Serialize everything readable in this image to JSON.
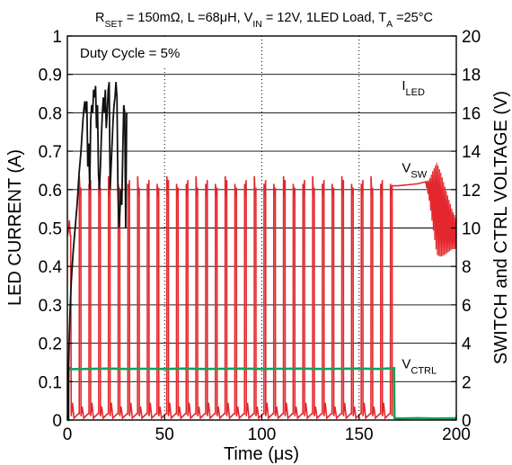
{
  "chart_data": {
    "type": "line",
    "title": {
      "parts": [
        {
          "text": "R",
          "sub": false
        },
        {
          "text": "SET",
          "sub": true
        },
        {
          "text": " = 150mΩ, L =68μH, V",
          "sub": false
        },
        {
          "text": "IN",
          "sub": true
        },
        {
          "text": " = 12V, 1LED Load, T",
          "sub": false
        },
        {
          "text": "A",
          "sub": true
        },
        {
          "text": " =25°C",
          "sub": false
        }
      ]
    },
    "annotation": "Duty Cycle = 5%",
    "xlabel": "Time (μs)",
    "ylabel_left": "LED CURRENT (A)",
    "ylabel_right": "SWITCH and CTRL VOLTAGE (V)",
    "xlim": [
      0,
      200
    ],
    "ylim_left": [
      0,
      1
    ],
    "ylim_right": [
      0,
      20
    ],
    "x_ticks": [
      "0",
      "50",
      "100",
      "150",
      "200"
    ],
    "y_left_ticks": [
      "0",
      "0.1",
      "0.2",
      "0.3",
      "0.4",
      "0.5",
      "0.6",
      "0.7",
      "0.8",
      "0.9",
      "1"
    ],
    "y_right_ticks": [
      "0",
      "2",
      "4",
      "6",
      "8",
      "10",
      "12",
      "14",
      "16",
      "18",
      "20"
    ],
    "grid": {
      "horizontal": "solid",
      "vertical": "dotted"
    },
    "series": [
      {
        "name": "I",
        "sub": "LED",
        "axis": "left",
        "color": "#111111",
        "label_at": [
          172,
          0.86
        ],
        "x": [
          0.5,
          0.5,
          1,
          1.5,
          2,
          2.5,
          3,
          4,
          5,
          5.5,
          6,
          7,
          7.5,
          8,
          8.5,
          9,
          9.5,
          10,
          10.5,
          11,
          11.5,
          12,
          12.5,
          13,
          13.5,
          14,
          14.5,
          15,
          15.5,
          16,
          16.5,
          17,
          17.5,
          18,
          18.5,
          19,
          19.5,
          20,
          20.5,
          21,
          21.5,
          22,
          22.5,
          23,
          23.5,
          24,
          24.5,
          25,
          25.5,
          26,
          26.5,
          27,
          27.5,
          28,
          28.5,
          29,
          29.5,
          30,
          30.5
        ],
        "y": [
          0.0,
          0.1,
          0.22,
          0.3,
          0.36,
          0.4,
          0.44,
          0.5,
          0.56,
          0.6,
          0.64,
          0.7,
          0.74,
          0.78,
          0.81,
          0.83,
          0.8,
          0.83,
          0.66,
          0.72,
          0.6,
          0.78,
          0.82,
          0.8,
          0.86,
          0.84,
          0.87,
          0.76,
          0.82,
          0.64,
          0.6,
          0.66,
          0.74,
          0.8,
          0.84,
          0.8,
          0.86,
          0.76,
          0.8,
          0.86,
          0.88,
          0.6,
          0.66,
          0.72,
          0.78,
          0.82,
          0.84,
          0.88,
          0.84,
          0.6,
          0.5,
          0.54,
          0.6,
          0.56,
          0.7,
          0.82,
          0.8,
          0.5,
          0.8
        ]
      },
      {
        "name": "V",
        "sub": "SW",
        "axis": "right",
        "color": "#e3272d",
        "label_at": [
          172,
          0.645
        ],
        "t_start": 0,
        "t_stop": 170,
        "first_edge": 2.0,
        "period": 5.0,
        "pulse_high": 0.9,
        "high_level": 12.2,
        "startup": [
          [
            0,
            9.6
          ],
          [
            0.5,
            9.8
          ],
          [
            1.0,
            10.4
          ],
          [
            1.5,
            9.6
          ]
        ],
        "ringing": {
          "t": [
            170,
            172,
            174,
            176,
            178,
            180,
            182,
            184,
            186,
            188,
            190,
            192,
            194,
            196,
            198,
            200
          ],
          "amp": [
            0,
            0,
            0,
            0,
            0,
            0,
            0,
            0,
            0.5,
            1.5,
            2.4,
            2.2,
            1.8,
            1.4,
            1.0,
            0.8
          ]
        },
        "tail": [
          [
            170,
            12.2
          ],
          [
            180,
            12.3
          ],
          [
            184,
            12.4
          ],
          [
            186,
            12.0
          ],
          [
            190,
            11.0
          ],
          [
            194,
            10.4
          ],
          [
            198,
            9.9
          ],
          [
            200,
            9.7
          ]
        ]
      },
      {
        "name": "V",
        "sub": "CTRL",
        "axis": "right",
        "color": "#19a05b",
        "label_at": [
          172,
          0.135
        ],
        "x": [
          0,
          0.5,
          0.6,
          1.5,
          2,
          10,
          20,
          30,
          40,
          50,
          60,
          70,
          80,
          90,
          100,
          110,
          120,
          130,
          140,
          150,
          160,
          168,
          168.2,
          170,
          180,
          190,
          200
        ],
        "y": [
          0.0,
          0.0,
          2.6,
          2.7,
          2.65,
          2.66,
          2.68,
          2.66,
          2.67,
          2.66,
          2.68,
          2.66,
          2.67,
          2.68,
          2.66,
          2.67,
          2.68,
          2.66,
          2.67,
          2.68,
          2.66,
          2.7,
          0.1,
          0.08,
          0.1,
          0.08,
          0.09
        ]
      }
    ]
  }
}
